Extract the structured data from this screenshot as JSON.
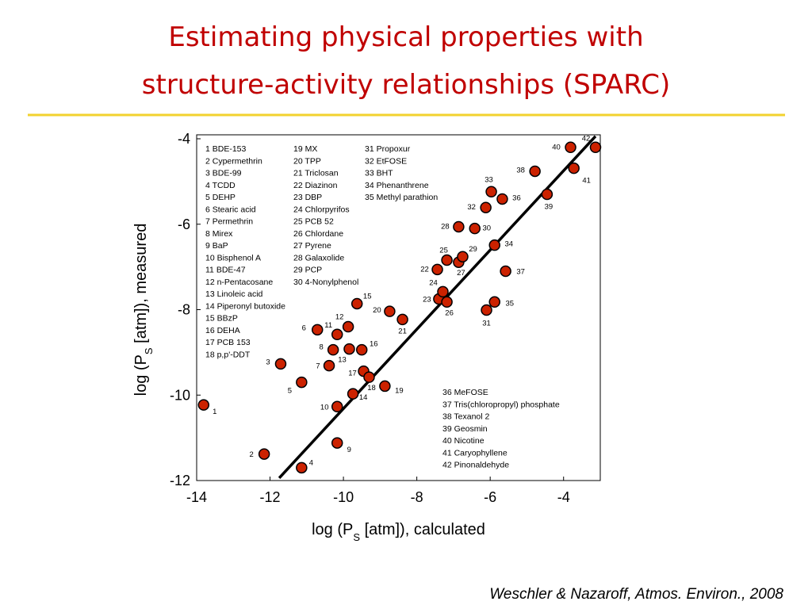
{
  "slide": {
    "title": [
      "Estimating physical properties with",
      "structure-activity relationships (SPARC)"
    ],
    "citation": "Weschler & Nazaroff, Atmos. Environ., 2008"
  },
  "chart_data": {
    "type": "scatter",
    "xlabel": [
      "log (P",
      "S",
      " [atm]), calculated"
    ],
    "ylabel": [
      "log (P",
      "S",
      " [atm]), measured"
    ],
    "xlim": [
      -14,
      -3
    ],
    "ylim": [
      -12,
      -4
    ],
    "xticks": [
      -14,
      -12,
      -10,
      -8,
      -6,
      -4
    ],
    "yticks": [
      -12,
      -10,
      -8,
      -6,
      -4
    ],
    "color": "#cc2200",
    "x": [
      -13.81,
      -12.16,
      -11.71,
      -11.14,
      -11.14,
      -10.71,
      -10.39,
      -10.28,
      -10.17,
      -10.17,
      -10.17,
      -9.87,
      -9.84,
      -9.74,
      -9.63,
      -9.5,
      -9.45,
      -9.3,
      -8.87,
      -8.74,
      -8.39,
      -7.44,
      -7.4,
      -7.29,
      -7.18,
      -7.18,
      -6.86,
      -6.86,
      -6.75,
      -6.42,
      -6.1,
      -6.12,
      -5.97,
      -5.88,
      -5.88,
      -5.67,
      -5.58,
      -4.78,
      -4.45,
      -3.81,
      -3.72,
      -3.13
    ],
    "y": [
      -10.23,
      -11.38,
      -9.27,
      -11.7,
      -9.7,
      -8.47,
      -9.31,
      -8.94,
      -11.12,
      -10.27,
      -8.58,
      -8.4,
      -8.92,
      -9.97,
      -7.86,
      -8.94,
      -9.44,
      -9.58,
      -9.79,
      -8.04,
      -8.23,
      -7.06,
      -7.75,
      -7.58,
      -6.84,
      -7.82,
      -6.89,
      -6.06,
      -6.76,
      -6.1,
      -8.01,
      -5.61,
      -5.24,
      -6.49,
      -7.82,
      -5.41,
      -7.1,
      -4.76,
      -5.3,
      -4.2,
      -4.69,
      -4.2
    ],
    "point_labels": [
      "1",
      "2",
      "3",
      "4",
      "5",
      "6",
      "7",
      "8",
      "9",
      "10",
      "11",
      "12",
      "13",
      "14",
      "15",
      "16",
      "17",
      "18",
      "19",
      "20",
      "21",
      "22",
      "23",
      "24",
      "25",
      "26",
      "27",
      "28",
      "29",
      "30",
      "31",
      "32",
      "33",
      "34",
      "35",
      "36",
      "37",
      "38",
      "39",
      "40",
      "41",
      "42"
    ],
    "line": {
      "x": [
        -11.75,
        -3.13
      ],
      "y": [
        -11.94,
        -3.94
      ]
    },
    "compounds": [
      "1 BDE-153",
      "2 Cypermethrin",
      "3 BDE-99",
      "4 TCDD",
      "5 DEHP",
      "6 Stearic acid",
      "7 Permethrin",
      "8 Mirex",
      "9 BaP",
      "10 Bisphenol A",
      "11 BDE-47",
      "12 n-Pentacosane",
      "13 Linoleic acid",
      "14 Piperonyl butoxide",
      "15 BBzP",
      "16 DEHA",
      "17 PCB 153",
      "18 p,p'-DDT",
      "19 MX",
      "20 TPP",
      "21 Triclosan",
      "22 Diazinon",
      "23 DBP",
      "24 Chlorpyrifos",
      "25 PCB 52",
      "26 Chlordane",
      "27 Pyrene",
      "28 Galaxolide",
      "29 PCP",
      "30 4-Nonylphenol",
      "31 Propoxur",
      "32 EtFOSE",
      "33 BHT",
      "34 Phenanthrene",
      "35 Methyl parathion",
      "36 MeFOSE",
      "37 Tris(chloropropyl) phosphate",
      "38 Texanol 2",
      "39 Geosmin",
      "40 Nicotine",
      "41 Caryophyllene",
      "42 Pinonaldehyde"
    ]
  }
}
